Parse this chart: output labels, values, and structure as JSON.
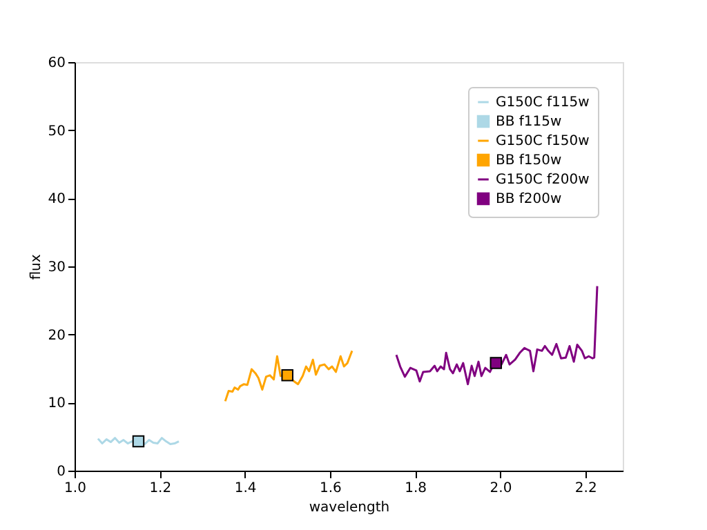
{
  "chart_data": {
    "type": "line",
    "xlabel": "wavelength",
    "ylabel": "flux",
    "xlim": [
      1.0,
      2.288
    ],
    "ylim": [
      0,
      60
    ],
    "xticks": [
      {
        "value": 1.0,
        "label": "1.0"
      },
      {
        "value": 1.2,
        "label": "1.2"
      },
      {
        "value": 1.4,
        "label": "1.4"
      },
      {
        "value": 1.6,
        "label": "1.6"
      },
      {
        "value": 1.8,
        "label": "1.8"
      },
      {
        "value": 2.0,
        "label": "2.0"
      },
      {
        "value": 2.2,
        "label": "2.2"
      }
    ],
    "yticks": [
      0,
      10,
      20,
      30,
      40,
      50,
      60
    ],
    "grid": false,
    "legend": "top right",
    "series": [
      {
        "name": "G150C f115w",
        "color": "#add8e6",
        "x": [
          1.055,
          1.065,
          1.075,
          1.085,
          1.095,
          1.105,
          1.115,
          1.125,
          1.135,
          1.145,
          1.155,
          1.165,
          1.175,
          1.185,
          1.195,
          1.205,
          1.215,
          1.225,
          1.235,
          1.245
        ],
        "values": [
          4.7,
          4.0,
          4.6,
          4.2,
          4.8,
          4.1,
          4.5,
          4.0,
          4.3,
          4.2,
          4.4,
          3.9,
          4.5,
          4.1,
          4.0,
          4.8,
          4.3,
          3.9,
          4.0,
          4.3
        ]
      },
      {
        "name": "BB f115w",
        "type": "scatter",
        "marker": "square",
        "color": "#add8e6",
        "x": [
          1.15
        ],
        "values": [
          4.3
        ]
      },
      {
        "name": "G150C f150w",
        "color": "#ffa500",
        "x": [
          1.354,
          1.362,
          1.371,
          1.376,
          1.384,
          1.389,
          1.398,
          1.406,
          1.416,
          1.425,
          1.432,
          1.441,
          1.45,
          1.459,
          1.468,
          1.476,
          1.484,
          1.495,
          1.503,
          1.516,
          1.525,
          1.536,
          1.544,
          1.551,
          1.56,
          1.567,
          1.576,
          1.587,
          1.597,
          1.605,
          1.614,
          1.625,
          1.633,
          1.641,
          1.652
        ],
        "values": [
          10.2,
          11.7,
          11.6,
          12.2,
          11.9,
          12.4,
          12.7,
          12.6,
          14.9,
          14.3,
          13.6,
          11.9,
          13.8,
          14.0,
          13.4,
          16.8,
          13.9,
          14.1,
          13.9,
          13.1,
          12.7,
          13.9,
          15.3,
          14.6,
          16.3,
          14.1,
          15.4,
          15.6,
          14.9,
          15.3,
          14.5,
          16.8,
          15.3,
          15.8,
          17.6
        ]
      },
      {
        "name": "BB f150w",
        "type": "scatter",
        "marker": "square",
        "color": "#ffa500",
        "x": [
          1.5
        ],
        "values": [
          14.0
        ]
      },
      {
        "name": "G150C f200w",
        "color": "#800080",
        "x": [
          1.756,
          1.765,
          1.776,
          1.789,
          1.803,
          1.811,
          1.819,
          1.835,
          1.846,
          1.852,
          1.86,
          1.868,
          1.873,
          1.882,
          1.889,
          1.898,
          1.905,
          1.913,
          1.924,
          1.933,
          1.94,
          1.949,
          1.956,
          1.965,
          1.976,
          1.986,
          2.003,
          2.014,
          2.022,
          2.035,
          2.046,
          2.057,
          2.07,
          2.078,
          2.087,
          2.098,
          2.105,
          2.113,
          2.122,
          2.132,
          2.143,
          2.154,
          2.163,
          2.173,
          2.181,
          2.192,
          2.199,
          2.208,
          2.217,
          2.221,
          2.228
        ],
        "values": [
          17.0,
          15.3,
          13.8,
          15.1,
          14.7,
          13.1,
          14.5,
          14.6,
          15.4,
          14.6,
          15.3,
          14.9,
          17.3,
          14.9,
          14.3,
          15.6,
          14.6,
          15.8,
          12.7,
          15.4,
          13.9,
          16.0,
          13.9,
          15.1,
          14.5,
          15.8,
          15.6,
          17.0,
          15.6,
          16.3,
          17.3,
          18.0,
          17.6,
          14.6,
          17.8,
          17.6,
          18.3,
          17.6,
          17.0,
          18.6,
          16.5,
          16.6,
          18.3,
          16.0,
          18.5,
          17.6,
          16.5,
          16.8,
          16.5,
          16.6,
          27.1
        ]
      },
      {
        "name": "BB f200w",
        "type": "scatter",
        "marker": "square",
        "color": "#800080",
        "x": [
          1.99
        ],
        "values": [
          15.8
        ]
      }
    ]
  }
}
